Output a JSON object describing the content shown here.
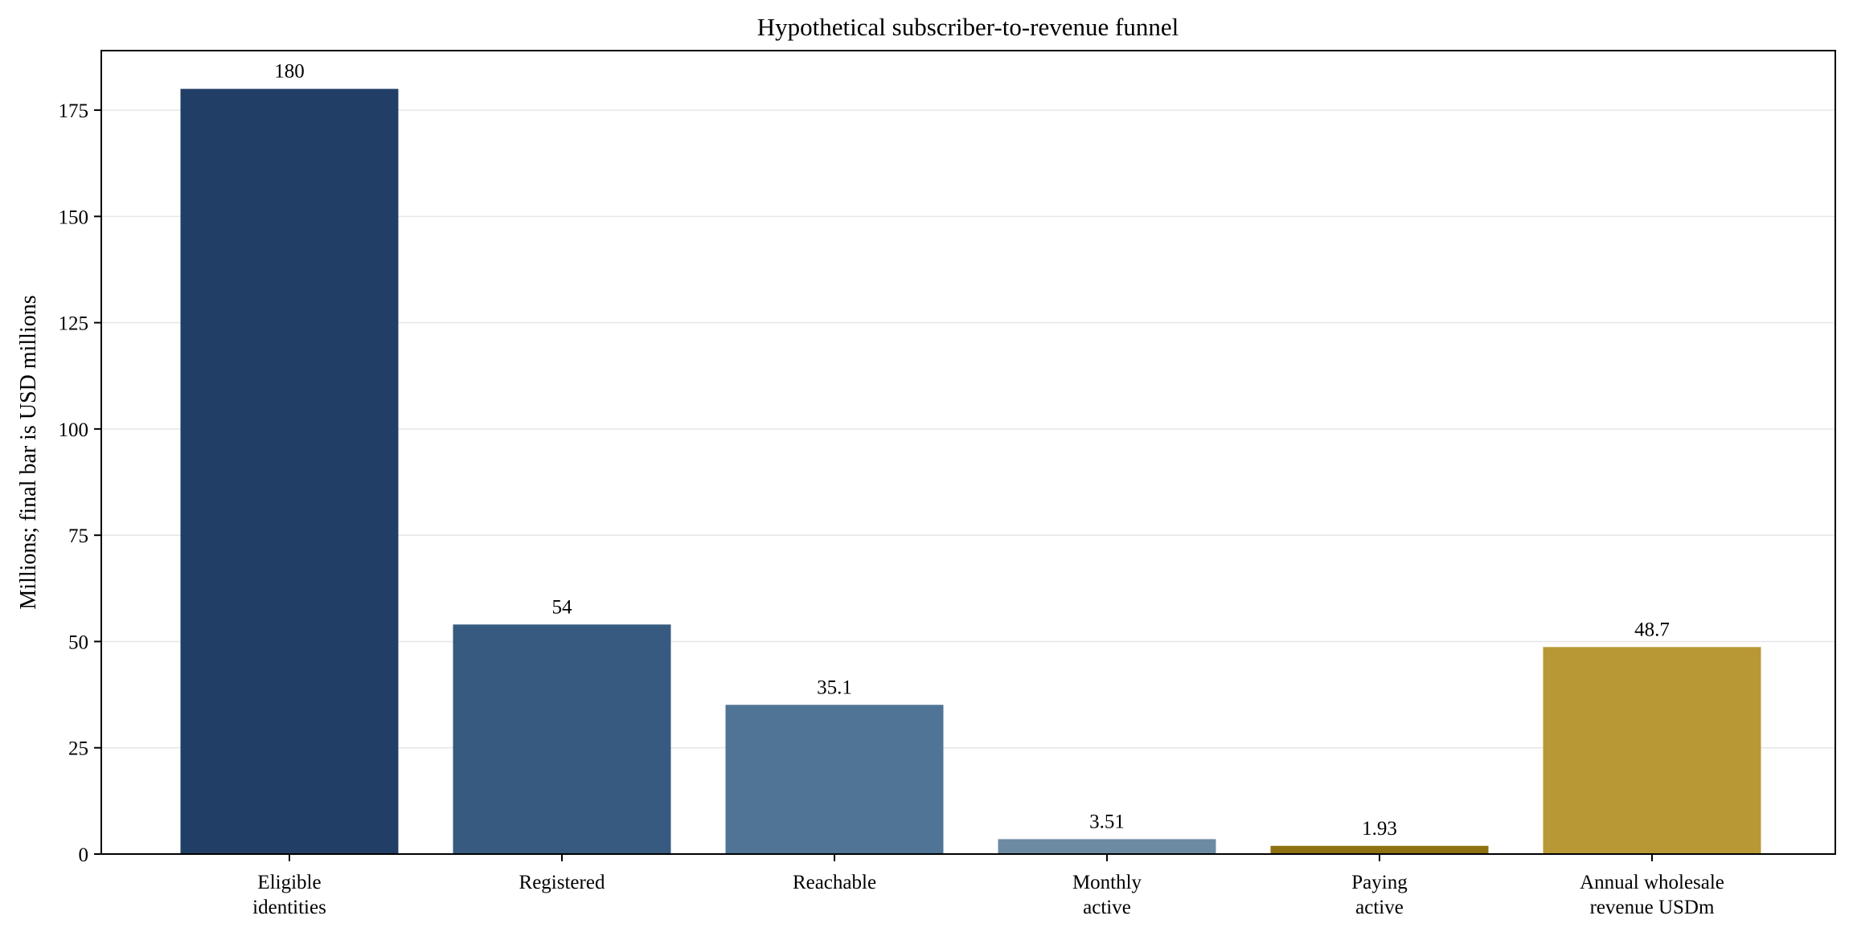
{
  "chart_data": {
    "type": "bar",
    "title": "Hypothetical subscriber-to-revenue funnel",
    "xlabel": "",
    "ylabel": "Millions; final bar is USD millions",
    "ylim": [
      0,
      189
    ],
    "yticks": [
      0,
      25,
      50,
      75,
      100,
      125,
      150,
      175
    ],
    "grid": "horizontal",
    "legend": "none",
    "categories": [
      [
        "Eligible",
        "identities"
      ],
      [
        "Registered"
      ],
      [
        "Reachable"
      ],
      [
        "Monthly",
        "active"
      ],
      [
        "Paying",
        "active"
      ],
      [
        "Annual wholesale",
        "revenue USDm"
      ]
    ],
    "values": [
      180,
      54,
      35.1,
      3.51,
      1.93,
      48.7
    ],
    "value_labels": [
      "180",
      "54",
      "35.1",
      "3.51",
      "1.93",
      "48.7"
    ],
    "colors": [
      "#213f66",
      "#375b80",
      "#4f7496",
      "#6d8aa3",
      "#8e7212",
      "#b89834"
    ]
  }
}
